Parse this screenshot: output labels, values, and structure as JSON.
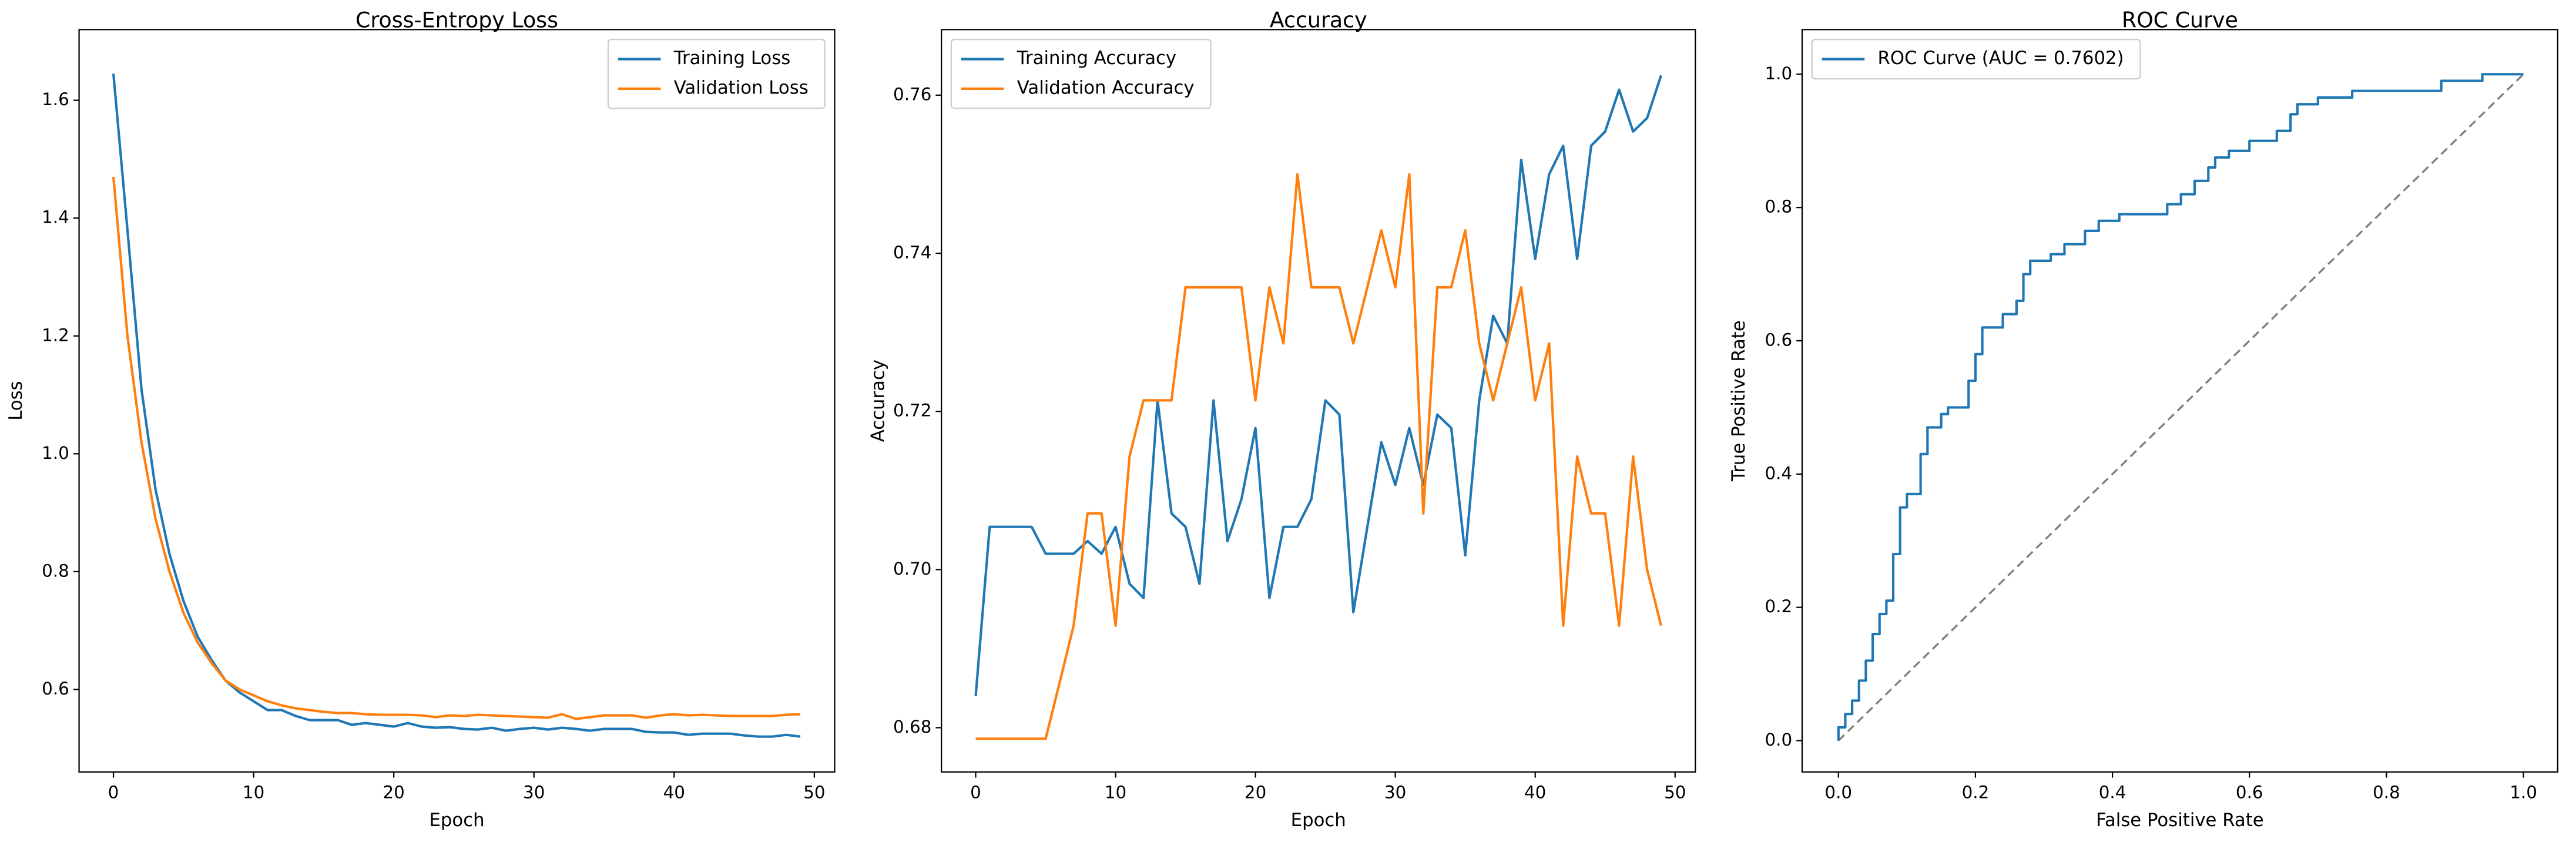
{
  "chart_data": [
    {
      "type": "line",
      "title": "Cross-Entropy Loss",
      "x_label": "Epoch",
      "y_label": "Loss",
      "x": [
        0,
        1,
        2,
        3,
        4,
        5,
        6,
        7,
        8,
        9,
        10,
        11,
        12,
        13,
        14,
        15,
        16,
        17,
        18,
        19,
        20,
        21,
        22,
        23,
        24,
        25,
        26,
        27,
        28,
        29,
        30,
        31,
        32,
        33,
        34,
        35,
        36,
        37,
        38,
        39,
        40,
        41,
        42,
        43,
        44,
        45,
        46,
        47,
        48,
        49
      ],
      "series": [
        {
          "name": "Training Loss",
          "color": "#1f77b4",
          "values": [
            1.645,
            1.38,
            1.11,
            0.94,
            0.83,
            0.75,
            0.69,
            0.65,
            0.615,
            0.595,
            0.58,
            0.565,
            0.565,
            0.555,
            0.548,
            0.548,
            0.548,
            0.54,
            0.543,
            0.54,
            0.537,
            0.543,
            0.537,
            0.535,
            0.536,
            0.533,
            0.532,
            0.535,
            0.53,
            0.533,
            0.535,
            0.532,
            0.535,
            0.533,
            0.53,
            0.533,
            0.533,
            0.533,
            0.528,
            0.527,
            0.527,
            0.523,
            0.525,
            0.525,
            0.525,
            0.522,
            0.52,
            0.52,
            0.523,
            0.52
          ]
        },
        {
          "name": "Validation Loss",
          "color": "#ff7f0e",
          "values": [
            1.47,
            1.2,
            1.02,
            0.89,
            0.8,
            0.73,
            0.68,
            0.645,
            0.615,
            0.6,
            0.59,
            0.58,
            0.573,
            0.568,
            0.565,
            0.562,
            0.56,
            0.56,
            0.558,
            0.557,
            0.557,
            0.557,
            0.556,
            0.553,
            0.556,
            0.555,
            0.557,
            0.556,
            0.555,
            0.554,
            0.553,
            0.552,
            0.558,
            0.55,
            0.553,
            0.556,
            0.556,
            0.556,
            0.552,
            0.556,
            0.558,
            0.556,
            0.557,
            0.556,
            0.555,
            0.555,
            0.555,
            0.555,
            0.557,
            0.558
          ]
        }
      ],
      "xlim": [
        -2.45,
        51.45
      ],
      "xticks": [
        0,
        10,
        20,
        30,
        40,
        50
      ],
      "ylim": [
        0.46,
        1.72
      ],
      "yticks": [
        0.6,
        0.8,
        {
          "value": 1.0,
          "label": "1.0"
        },
        1.2,
        1.4,
        1.6
      ],
      "legend": "upper right"
    },
    {
      "type": "line",
      "title": "Accuracy",
      "x_label": "Epoch",
      "y_label": "Accuracy",
      "x": [
        0,
        1,
        2,
        3,
        4,
        5,
        6,
        7,
        8,
        9,
        10,
        11,
        12,
        13,
        14,
        15,
        16,
        17,
        18,
        19,
        20,
        21,
        22,
        23,
        24,
        25,
        26,
        27,
        28,
        29,
        30,
        31,
        32,
        33,
        34,
        35,
        36,
        37,
        38,
        39,
        40,
        41,
        42,
        43,
        44,
        45,
        46,
        47,
        48,
        49
      ],
      "series": [
        {
          "name": "Training Accuracy",
          "color": "#1f77b4",
          "values": [
            0.684,
            0.7054,
            0.7054,
            0.7054,
            0.7054,
            0.702,
            0.702,
            0.702,
            0.7036,
            0.702,
            0.7054,
            0.6982,
            0.6964,
            0.7214,
            0.7071,
            0.7054,
            0.6982,
            0.7214,
            0.7036,
            0.7089,
            0.7179,
            0.6964,
            0.7054,
            0.7054,
            0.7089,
            0.7214,
            0.7196,
            0.6946,
            0.7054,
            0.7161,
            0.7107,
            0.7179,
            0.7107,
            0.7196,
            0.7179,
            0.7018,
            0.7214,
            0.7321,
            0.7286,
            0.7518,
            0.7393,
            0.75,
            0.7536,
            0.7393,
            0.7536,
            0.7554,
            0.7607,
            0.7554,
            0.7571,
            0.7625
          ]
        },
        {
          "name": "Validation Accuracy",
          "color": "#ff7f0e",
          "values": [
            0.6786,
            0.6786,
            0.6786,
            0.6786,
            0.6786,
            0.6786,
            0.6857,
            0.6929,
            0.7071,
            0.7071,
            0.6929,
            0.7143,
            0.7214,
            0.7214,
            0.7214,
            0.7357,
            0.7357,
            0.7357,
            0.7357,
            0.7357,
            0.7214,
            0.7357,
            0.7286,
            0.75,
            0.7357,
            0.7357,
            0.7357,
            0.7286,
            0.7357,
            0.7429,
            0.7357,
            0.75,
            0.7071,
            0.7357,
            0.7357,
            0.7429,
            0.7286,
            0.7214,
            0.7286,
            0.7357,
            0.7214,
            0.7286,
            0.6929,
            0.7143,
            0.7071,
            0.7071,
            0.6929,
            0.7143,
            0.7,
            0.6929
          ]
        }
      ],
      "xlim": [
        -2.45,
        51.45
      ],
      "xticks": [
        0,
        10,
        20,
        30,
        40,
        50
      ],
      "ylim": [
        0.6744,
        0.7683
      ],
      "yticks": [
        0.68,
        {
          "value": 0.7,
          "label": "0.70"
        },
        0.72,
        0.74,
        0.76
      ],
      "legend": "upper left"
    },
    {
      "type": "line",
      "title": "ROC Curve",
      "x_label": "False Positive Rate",
      "y_label": "True Positive Rate",
      "x": [
        0,
        0,
        0.01,
        0.01,
        0.02,
        0.02,
        0.03,
        0.03,
        0.04,
        0.04,
        0.05,
        0.05,
        0.06,
        0.06,
        0.07,
        0.07,
        0.08,
        0.08,
        0.09,
        0.09,
        0.1,
        0.1,
        0.12,
        0.12,
        0.13,
        0.13,
        0.15,
        0.15,
        0.16,
        0.16,
        0.19,
        0.19,
        0.2,
        0.2,
        0.21,
        0.21,
        0.24,
        0.24,
        0.26,
        0.26,
        0.27,
        0.27,
        0.28,
        0.28,
        0.31,
        0.31,
        0.33,
        0.33,
        0.36,
        0.36,
        0.38,
        0.38,
        0.41,
        0.41,
        0.48,
        0.48,
        0.5,
        0.5,
        0.52,
        0.52,
        0.54,
        0.54,
        0.55,
        0.55,
        0.57,
        0.57,
        0.6,
        0.6,
        0.64,
        0.64,
        0.66,
        0.66,
        0.67,
        0.67,
        0.7,
        0.7,
        0.75,
        0.75,
        0.88,
        0.88,
        0.94,
        0.94,
        1.0
      ],
      "series": [
        {
          "name": "ROC Curve (AUC = 0.7602)",
          "color": "#1f77b4",
          "values": [
            0,
            0.02,
            0.02,
            0.04,
            0.04,
            0.06,
            0.06,
            0.09,
            0.09,
            0.12,
            0.12,
            0.16,
            0.16,
            0.19,
            0.19,
            0.21,
            0.21,
            0.28,
            0.28,
            0.35,
            0.35,
            0.37,
            0.37,
            0.43,
            0.43,
            0.47,
            0.47,
            0.49,
            0.49,
            0.5,
            0.5,
            0.54,
            0.54,
            0.58,
            0.58,
            0.62,
            0.62,
            0.64,
            0.64,
            0.66,
            0.66,
            0.7,
            0.7,
            0.72,
            0.72,
            0.73,
            0.73,
            0.745,
            0.745,
            0.765,
            0.765,
            0.78,
            0.78,
            0.79,
            0.79,
            0.805,
            0.805,
            0.82,
            0.82,
            0.84,
            0.84,
            0.86,
            0.86,
            0.875,
            0.875,
            0.885,
            0.885,
            0.9,
            0.9,
            0.915,
            0.915,
            0.94,
            0.94,
            0.955,
            0.955,
            0.965,
            0.965,
            0.975,
            0.975,
            0.99,
            0.99,
            1.0,
            1.0
          ]
        }
      ],
      "reference_line": {
        "x": [
          0,
          1
        ],
        "y": [
          0,
          1
        ],
        "color": "#808080",
        "dashed": true
      },
      "xlim": [
        -0.053,
        1.05
      ],
      "xticks": [
        {
          "value": 0,
          "label": "0.0"
        },
        0.2,
        0.4,
        0.6,
        0.8,
        {
          "value": 1,
          "label": "1.0"
        }
      ],
      "ylim": [
        -0.047,
        1.067
      ],
      "yticks": [
        {
          "value": 0,
          "label": "0.0"
        },
        0.2,
        0.4,
        0.6,
        0.8,
        {
          "value": 1,
          "label": "1.0"
        }
      ],
      "legend": "upper left"
    }
  ]
}
